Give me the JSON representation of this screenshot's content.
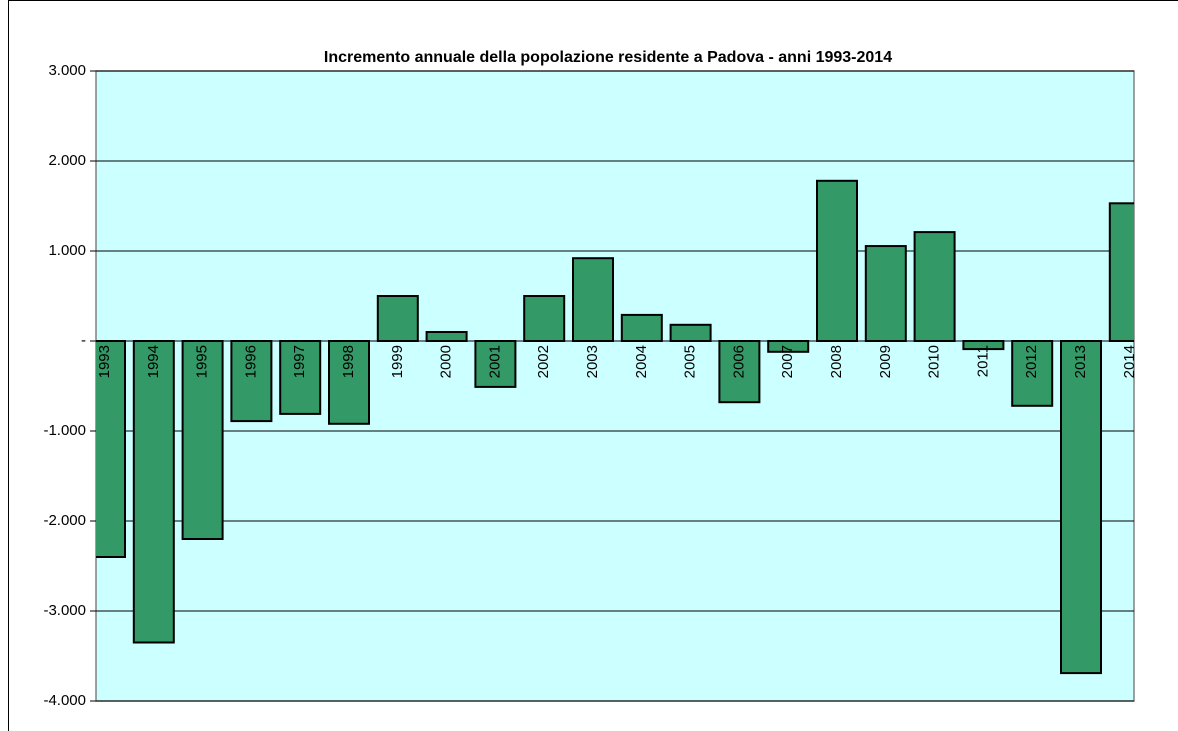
{
  "chart_data": {
    "type": "bar",
    "title": "Incremento annuale della popolazione residente a Padova - anni 1993-2014",
    "categories": [
      "1993",
      "1994",
      "1995",
      "1996",
      "1997",
      "1998",
      "1999",
      "2000",
      "2001",
      "2002",
      "2003",
      "2004",
      "2005",
      "2006",
      "2007",
      "2008",
      "2009",
      "2010",
      "2011",
      "2012",
      "2013",
      "2014"
    ],
    "values": [
      -2400,
      -3350,
      -2200,
      -890,
      -810,
      -920,
      500,
      100,
      -510,
      500,
      920,
      290,
      180,
      -680,
      -120,
      1780,
      1055,
      1210,
      -90,
      -720,
      -3690,
      1530
    ],
    "color": "#339966",
    "ylim": [
      -4000,
      3000
    ],
    "yticks": [
      {
        "value": -4000,
        "label": "-4.000"
      },
      {
        "value": -3000,
        "label": "-3.000"
      },
      {
        "value": -2000,
        "label": "-2.000"
      },
      {
        "value": -1000,
        "label": "-1.000"
      },
      {
        "value": 0,
        "label": "-"
      },
      {
        "value": 1000,
        "label": "1.000"
      },
      {
        "value": 2000,
        "label": "2.000"
      },
      {
        "value": 3000,
        "label": "3.000"
      }
    ],
    "grid": true
  }
}
